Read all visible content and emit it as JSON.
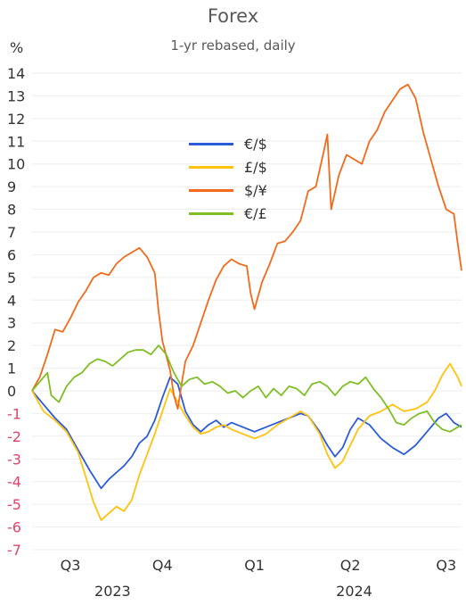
{
  "chart_data": {
    "type": "line",
    "title": "Forex",
    "subtitle": "1-yr rebased, daily",
    "ylabel": "%",
    "ylim": [
      -7,
      14
    ],
    "yticks": [
      14,
      13,
      12,
      11,
      10,
      9,
      8,
      7,
      6,
      5,
      4,
      3,
      2,
      1,
      0,
      -1,
      -2,
      -3,
      -4,
      -5,
      -6,
      -7
    ],
    "negative_tick_color": "#e0436b",
    "positive_tick_color": "#333333",
    "grid": true,
    "legend_position": "center",
    "x_quarter_labels": [
      "Q3",
      "Q4",
      "Q1",
      "Q2",
      "Q3"
    ],
    "x_year_labels": [
      "2023",
      "2024"
    ],
    "x_quarter_positions": [
      2023.6,
      2023.84,
      2024.08,
      2024.33,
      2024.58
    ],
    "x_year_positions": [
      2023.71,
      2024.34
    ],
    "xlim": [
      2023.5,
      2024.62
    ],
    "series": [
      {
        "name": "€/$",
        "color": "#2c5bd8",
        "points": [
          [
            2023.5,
            0
          ],
          [
            2023.53,
            -0.6
          ],
          [
            2023.56,
            -1.2
          ],
          [
            2023.59,
            -1.7
          ],
          [
            2023.62,
            -2.6
          ],
          [
            2023.65,
            -3.5
          ],
          [
            2023.68,
            -4.3
          ],
          [
            2023.7,
            -3.9
          ],
          [
            2023.72,
            -3.6
          ],
          [
            2023.74,
            -3.3
          ],
          [
            2023.76,
            -2.9
          ],
          [
            2023.78,
            -2.3
          ],
          [
            2023.8,
            -2.0
          ],
          [
            2023.82,
            -1.3
          ],
          [
            2023.84,
            -0.3
          ],
          [
            2023.86,
            0.6
          ],
          [
            2023.88,
            0.3
          ],
          [
            2023.9,
            -0.9
          ],
          [
            2023.92,
            -1.5
          ],
          [
            2023.94,
            -1.8
          ],
          [
            2023.96,
            -1.5
          ],
          [
            2023.98,
            -1.3
          ],
          [
            2024.0,
            -1.6
          ],
          [
            2024.02,
            -1.4
          ],
          [
            2024.05,
            -1.6
          ],
          [
            2024.08,
            -1.8
          ],
          [
            2024.11,
            -1.6
          ],
          [
            2024.14,
            -1.4
          ],
          [
            2024.17,
            -1.2
          ],
          [
            2024.2,
            -1.0
          ],
          [
            2024.22,
            -1.1
          ],
          [
            2024.25,
            -1.8
          ],
          [
            2024.27,
            -2.4
          ],
          [
            2024.29,
            -2.9
          ],
          [
            2024.31,
            -2.5
          ],
          [
            2024.33,
            -1.7
          ],
          [
            2024.35,
            -1.2
          ],
          [
            2024.38,
            -1.5
          ],
          [
            2024.41,
            -2.1
          ],
          [
            2024.44,
            -2.5
          ],
          [
            2024.47,
            -2.8
          ],
          [
            2024.5,
            -2.4
          ],
          [
            2024.53,
            -1.8
          ],
          [
            2024.56,
            -1.2
          ],
          [
            2024.58,
            -1.0
          ],
          [
            2024.6,
            -1.4
          ],
          [
            2024.62,
            -1.6
          ]
        ]
      },
      {
        "name": "£/$",
        "color": "#ffc20e",
        "points": [
          [
            2023.5,
            0
          ],
          [
            2023.53,
            -0.9
          ],
          [
            2023.56,
            -1.3
          ],
          [
            2023.59,
            -1.8
          ],
          [
            2023.62,
            -2.7
          ],
          [
            2023.64,
            -3.8
          ],
          [
            2023.66,
            -4.9
          ],
          [
            2023.68,
            -5.7
          ],
          [
            2023.7,
            -5.4
          ],
          [
            2023.72,
            -5.1
          ],
          [
            2023.74,
            -5.3
          ],
          [
            2023.76,
            -4.8
          ],
          [
            2023.78,
            -3.7
          ],
          [
            2023.8,
            -2.8
          ],
          [
            2023.82,
            -1.9
          ],
          [
            2023.84,
            -0.9
          ],
          [
            2023.86,
            0.1
          ],
          [
            2023.88,
            -0.5
          ],
          [
            2023.9,
            -1.1
          ],
          [
            2023.92,
            -1.6
          ],
          [
            2023.94,
            -1.9
          ],
          [
            2023.96,
            -1.8
          ],
          [
            2023.98,
            -1.6
          ],
          [
            2024.0,
            -1.5
          ],
          [
            2024.02,
            -1.7
          ],
          [
            2024.05,
            -1.9
          ],
          [
            2024.08,
            -2.1
          ],
          [
            2024.11,
            -1.9
          ],
          [
            2024.14,
            -1.5
          ],
          [
            2024.17,
            -1.2
          ],
          [
            2024.2,
            -0.9
          ],
          [
            2024.22,
            -1.1
          ],
          [
            2024.25,
            -1.9
          ],
          [
            2024.27,
            -2.8
          ],
          [
            2024.29,
            -3.4
          ],
          [
            2024.31,
            -3.1
          ],
          [
            2024.33,
            -2.4
          ],
          [
            2024.35,
            -1.7
          ],
          [
            2024.38,
            -1.1
          ],
          [
            2024.41,
            -0.9
          ],
          [
            2024.44,
            -0.6
          ],
          [
            2024.47,
            -0.9
          ],
          [
            2024.5,
            -0.8
          ],
          [
            2024.53,
            -0.5
          ],
          [
            2024.55,
            0.0
          ],
          [
            2024.57,
            0.7
          ],
          [
            2024.59,
            1.2
          ],
          [
            2024.61,
            0.6
          ],
          [
            2024.62,
            0.2
          ]
        ]
      },
      {
        "name": "$/¥",
        "color": "#f26a1b",
        "points": [
          [
            2023.5,
            0
          ],
          [
            2023.52,
            0.6
          ],
          [
            2023.54,
            1.6
          ],
          [
            2023.56,
            2.7
          ],
          [
            2023.58,
            2.6
          ],
          [
            2023.6,
            3.2
          ],
          [
            2023.62,
            3.9
          ],
          [
            2023.64,
            4.4
          ],
          [
            2023.66,
            5.0
          ],
          [
            2023.68,
            5.2
          ],
          [
            2023.7,
            5.1
          ],
          [
            2023.72,
            5.6
          ],
          [
            2023.74,
            5.9
          ],
          [
            2023.76,
            6.1
          ],
          [
            2023.78,
            6.3
          ],
          [
            2023.8,
            5.9
          ],
          [
            2023.82,
            5.2
          ],
          [
            2023.83,
            3.5
          ],
          [
            2023.84,
            2.2
          ],
          [
            2023.86,
            0.9
          ],
          [
            2023.87,
            -0.2
          ],
          [
            2023.88,
            -0.8
          ],
          [
            2023.89,
            0.3
          ],
          [
            2023.9,
            1.3
          ],
          [
            2023.92,
            2.0
          ],
          [
            2023.94,
            3.0
          ],
          [
            2023.96,
            4.0
          ],
          [
            2023.98,
            4.9
          ],
          [
            2024.0,
            5.5
          ],
          [
            2024.02,
            5.8
          ],
          [
            2024.04,
            5.6
          ],
          [
            2024.06,
            5.5
          ],
          [
            2024.07,
            4.3
          ],
          [
            2024.08,
            3.6
          ],
          [
            2024.1,
            4.8
          ],
          [
            2024.12,
            5.6
          ],
          [
            2024.14,
            6.5
          ],
          [
            2024.16,
            6.6
          ],
          [
            2024.18,
            7.0
          ],
          [
            2024.2,
            7.5
          ],
          [
            2024.22,
            8.8
          ],
          [
            2024.24,
            9.0
          ],
          [
            2024.26,
            10.5
          ],
          [
            2024.27,
            11.3
          ],
          [
            2024.28,
            8.0
          ],
          [
            2024.3,
            9.5
          ],
          [
            2024.32,
            10.4
          ],
          [
            2024.34,
            10.2
          ],
          [
            2024.36,
            10.0
          ],
          [
            2024.38,
            11.0
          ],
          [
            2024.4,
            11.5
          ],
          [
            2024.42,
            12.3
          ],
          [
            2024.44,
            12.8
          ],
          [
            2024.46,
            13.3
          ],
          [
            2024.48,
            13.5
          ],
          [
            2024.5,
            12.9
          ],
          [
            2024.52,
            11.4
          ],
          [
            2024.54,
            10.2
          ],
          [
            2024.56,
            9.0
          ],
          [
            2024.58,
            8.0
          ],
          [
            2024.6,
            7.8
          ],
          [
            2024.61,
            6.5
          ],
          [
            2024.62,
            5.3
          ]
        ]
      },
      {
        "name": "€/£",
        "color": "#7fbe25",
        "points": [
          [
            2023.5,
            0
          ],
          [
            2023.52,
            0.4
          ],
          [
            2023.54,
            0.8
          ],
          [
            2023.55,
            -0.2
          ],
          [
            2023.57,
            -0.5
          ],
          [
            2023.59,
            0.2
          ],
          [
            2023.61,
            0.6
          ],
          [
            2023.63,
            0.8
          ],
          [
            2023.65,
            1.2
          ],
          [
            2023.67,
            1.4
          ],
          [
            2023.69,
            1.3
          ],
          [
            2023.71,
            1.1
          ],
          [
            2023.73,
            1.4
          ],
          [
            2023.75,
            1.7
          ],
          [
            2023.77,
            1.8
          ],
          [
            2023.79,
            1.8
          ],
          [
            2023.81,
            1.6
          ],
          [
            2023.83,
            2.0
          ],
          [
            2023.85,
            1.6
          ],
          [
            2023.87,
            0.8
          ],
          [
            2023.89,
            0.2
          ],
          [
            2023.91,
            0.5
          ],
          [
            2023.93,
            0.6
          ],
          [
            2023.95,
            0.3
          ],
          [
            2023.97,
            0.4
          ],
          [
            2023.99,
            0.2
          ],
          [
            2024.01,
            -0.1
          ],
          [
            2024.03,
            0.0
          ],
          [
            2024.05,
            -0.3
          ],
          [
            2024.07,
            0.0
          ],
          [
            2024.09,
            0.2
          ],
          [
            2024.11,
            -0.3
          ],
          [
            2024.13,
            0.1
          ],
          [
            2024.15,
            -0.2
          ],
          [
            2024.17,
            0.2
          ],
          [
            2024.19,
            0.1
          ],
          [
            2024.21,
            -0.2
          ],
          [
            2024.23,
            0.3
          ],
          [
            2024.25,
            0.4
          ],
          [
            2024.27,
            0.2
          ],
          [
            2024.29,
            -0.2
          ],
          [
            2024.31,
            0.2
          ],
          [
            2024.33,
            0.4
          ],
          [
            2024.35,
            0.3
          ],
          [
            2024.37,
            0.6
          ],
          [
            2024.39,
            0.1
          ],
          [
            2024.41,
            -0.3
          ],
          [
            2024.43,
            -0.8
          ],
          [
            2024.45,
            -1.4
          ],
          [
            2024.47,
            -1.5
          ],
          [
            2024.49,
            -1.2
          ],
          [
            2024.51,
            -1.0
          ],
          [
            2024.53,
            -0.9
          ],
          [
            2024.55,
            -1.4
          ],
          [
            2024.57,
            -1.7
          ],
          [
            2024.59,
            -1.8
          ],
          [
            2024.61,
            -1.6
          ],
          [
            2024.62,
            -1.5
          ]
        ]
      }
    ]
  }
}
